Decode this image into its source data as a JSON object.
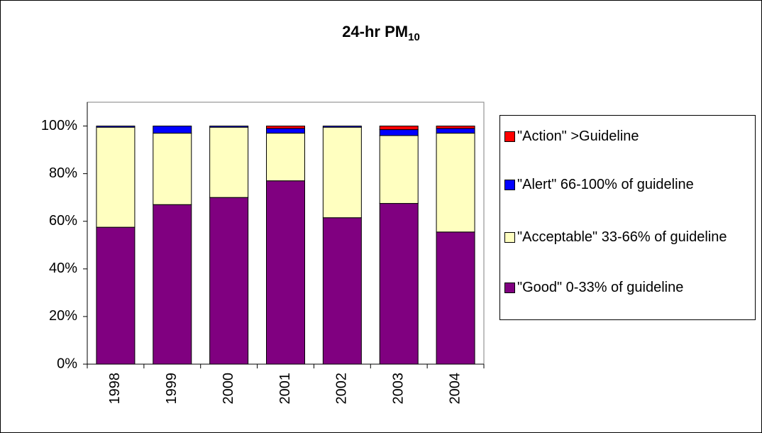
{
  "chart_data": {
    "type": "stacked_bar",
    "title": "24-hr PM",
    "title_subscript": "10",
    "categories": [
      "1998",
      "1999",
      "2000",
      "2001",
      "2002",
      "2003",
      "2004"
    ],
    "series": [
      {
        "name": "\"Good\" 0-33% of guideline",
        "color": "#800080",
        "values": [
          57.5,
          67,
          70,
          77,
          61.5,
          67.5,
          55.5
        ]
      },
      {
        "name": "\"Acceptable\" 33-66% of guideline",
        "color": "#ffffc0",
        "values": [
          42,
          30,
          29.5,
          20,
          38,
          28.5,
          41.5
        ]
      },
      {
        "name": "\"Alert\" 66-100% of guideline",
        "color": "#0000ff",
        "values": [
          0.5,
          3,
          0.5,
          2,
          0.5,
          2.5,
          2
        ]
      },
      {
        "name": "\"Action\" >Guideline",
        "color": "#ff0000",
        "values": [
          0,
          0,
          0,
          1,
          0,
          1.5,
          1
        ]
      }
    ],
    "ylim": [
      0,
      110
    ],
    "yticks": [
      {
        "value": 0,
        "label": "0%"
      },
      {
        "value": 20,
        "label": "20%"
      },
      {
        "value": 40,
        "label": "40%"
      },
      {
        "value": 60,
        "label": "60%"
      },
      {
        "value": 80,
        "label": "80%"
      },
      {
        "value": 100,
        "label": "100%"
      }
    ],
    "legend": "right"
  }
}
